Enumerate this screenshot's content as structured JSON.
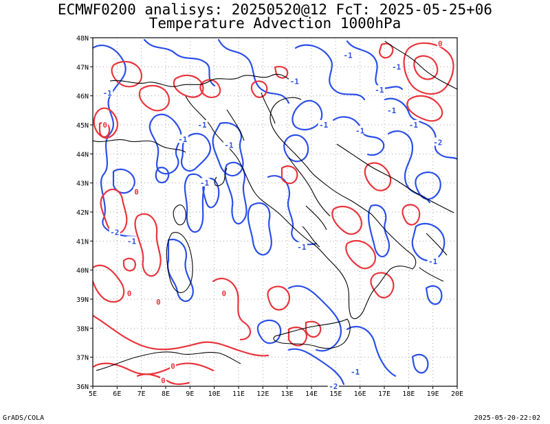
{
  "header": {
    "title_line1": "ECMWF0200 analisys: 20250520@12 FcT: 2025-05-25+06",
    "title_line2": "Temperature Advection 1000hPa"
  },
  "footer": {
    "left": "GrADS/COLA",
    "right": "2025-05-20-22:02"
  },
  "map": {
    "lon_range": [
      5,
      20
    ],
    "lat_range": [
      36,
      48
    ],
    "lon_ticks": [
      "5E",
      "6E",
      "7E",
      "8E",
      "9E",
      "10E",
      "11E",
      "12E",
      "13E",
      "14E",
      "15E",
      "16E",
      "17E",
      "18E",
      "19E",
      "20E"
    ],
    "lat_ticks": [
      "36N",
      "37N",
      "38N",
      "39N",
      "40N",
      "41N",
      "42N",
      "43N",
      "44N",
      "45N",
      "46N",
      "47N",
      "48N"
    ],
    "grid": "dotted",
    "colors": {
      "positive_contour": "#e8343c",
      "negative_contour": "#2a4ee8",
      "coastline": "#000000",
      "grid": "#a0a0a0"
    },
    "contour_labels": [
      {
        "text": "-1",
        "lon": 5.6,
        "lat": 46.1,
        "sign": "neg"
      },
      {
        "text": "0",
        "lon": 5.5,
        "lat": 45.0,
        "sign": "pos"
      },
      {
        "text": "-1",
        "lon": 8.7,
        "lat": 44.5,
        "sign": "neg"
      },
      {
        "text": "-1",
        "lon": 9.5,
        "lat": 45.0,
        "sign": "neg"
      },
      {
        "text": "-1",
        "lon": 10.6,
        "lat": 44.3,
        "sign": "neg"
      },
      {
        "text": "-1",
        "lon": 9.6,
        "lat": 43.0,
        "sign": "neg"
      },
      {
        "text": "0",
        "lon": 6.8,
        "lat": 42.7,
        "sign": "pos"
      },
      {
        "text": "-2",
        "lon": 5.9,
        "lat": 41.3,
        "sign": "neg"
      },
      {
        "text": "-1",
        "lon": 6.6,
        "lat": 41.0,
        "sign": "neg"
      },
      {
        "text": "0",
        "lon": 6.5,
        "lat": 39.2,
        "sign": "pos"
      },
      {
        "text": "0",
        "lon": 7.7,
        "lat": 38.9,
        "sign": "pos"
      },
      {
        "text": "0",
        "lon": 10.4,
        "lat": 39.2,
        "sign": "pos"
      },
      {
        "text": "0",
        "lon": 8.3,
        "lat": 36.7,
        "sign": "pos"
      },
      {
        "text": "0",
        "lon": 7.9,
        "lat": 36.2,
        "sign": "pos"
      },
      {
        "text": "-1",
        "lon": 13.3,
        "lat": 46.5,
        "sign": "neg"
      },
      {
        "text": "-1",
        "lon": 15.5,
        "lat": 47.4,
        "sign": "neg"
      },
      {
        "text": "-1",
        "lon": 14.5,
        "lat": 45.0,
        "sign": "neg"
      },
      {
        "text": "-1",
        "lon": 16.0,
        "lat": 44.8,
        "sign": "neg"
      },
      {
        "text": "-1",
        "lon": 17.3,
        "lat": 45.5,
        "sign": "neg"
      },
      {
        "text": "-1",
        "lon": 18.2,
        "lat": 45.0,
        "sign": "neg"
      },
      {
        "text": "-1",
        "lon": 16.8,
        "lat": 46.2,
        "sign": "neg"
      },
      {
        "text": "-1",
        "lon": 17.5,
        "lat": 47.0,
        "sign": "neg"
      },
      {
        "text": "-2",
        "lon": 19.2,
        "lat": 44.4,
        "sign": "neg"
      },
      {
        "text": "0",
        "lon": 19.3,
        "lat": 47.8,
        "sign": "pos"
      },
      {
        "text": "-1",
        "lon": 13.6,
        "lat": 40.8,
        "sign": "neg"
      },
      {
        "text": "-1",
        "lon": 19.0,
        "lat": 40.3,
        "sign": "neg"
      },
      {
        "text": "-2",
        "lon": 14.9,
        "lat": 36.0,
        "sign": "neg"
      },
      {
        "text": "-1",
        "lon": 15.8,
        "lat": 36.5,
        "sign": "neg"
      }
    ]
  }
}
